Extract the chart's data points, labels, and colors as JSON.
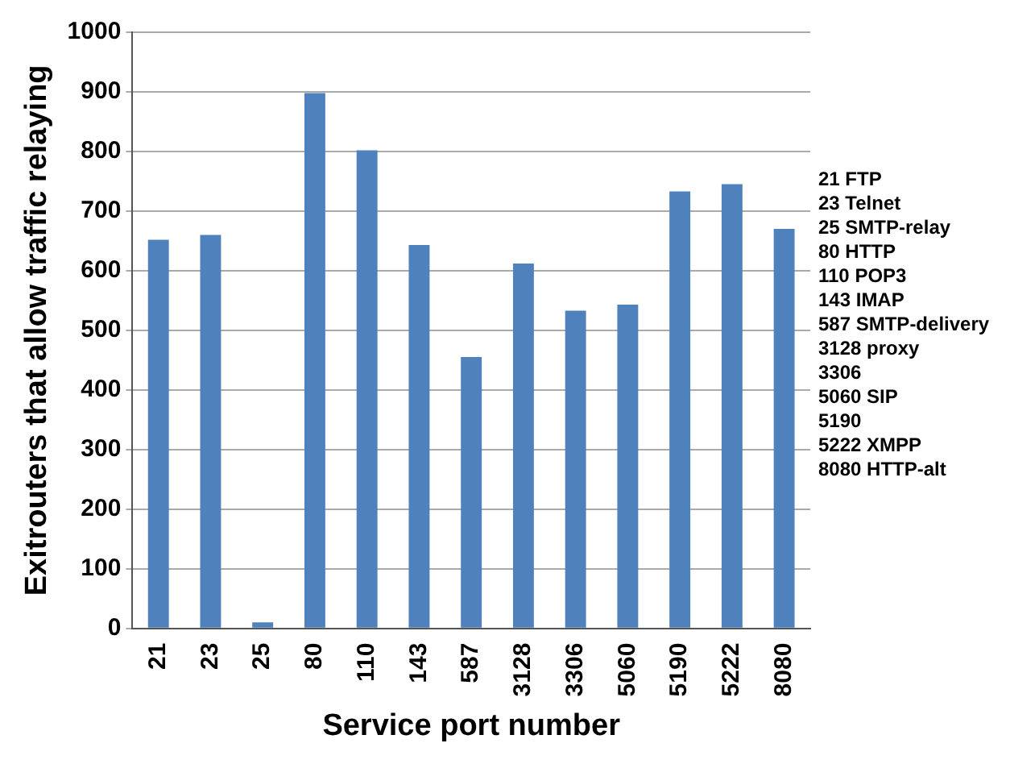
{
  "chart_data": {
    "type": "bar",
    "xlabel": "Service port number",
    "ylabel": "Exitrouters that allow traffic relaying",
    "categories": [
      "21",
      "23",
      "25",
      "80",
      "110",
      "143",
      "587",
      "3128",
      "3306",
      "5060",
      "5190",
      "5222",
      "8080"
    ],
    "values": [
      652,
      660,
      10,
      898,
      802,
      643,
      455,
      612,
      533,
      543,
      733,
      745,
      670
    ],
    "color": "#4f81bd",
    "ylim": [
      0,
      1000
    ],
    "yticks": [
      0,
      100,
      200,
      300,
      400,
      500,
      600,
      700,
      800,
      900,
      1000
    ],
    "grid": "y",
    "annotations": [
      "21 FTP",
      "23 Telnet",
      "25 SMTP-relay",
      "80 HTTP",
      "110 POP3",
      "143 IMAP",
      "587 SMTP-delivery",
      "3128 proxy",
      "3306",
      "5060 SIP",
      "5190",
      "5222 XMPP",
      "8080 HTTP-alt"
    ]
  }
}
